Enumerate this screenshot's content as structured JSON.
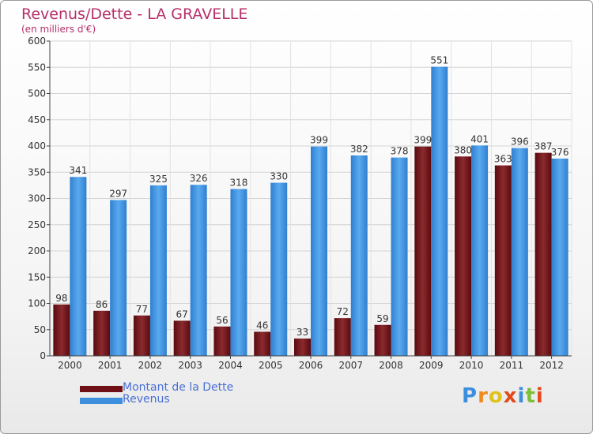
{
  "header": {
    "title": "Revenus/Dette - LA GRAVELLE",
    "subtitle": "(en milliers d'€)"
  },
  "chart_data": {
    "type": "bar",
    "title": "Revenus/Dette - LA GRAVELLE",
    "subtitle": "(en milliers d'€)",
    "categories": [
      "2000",
      "2001",
      "2002",
      "2003",
      "2004",
      "2005",
      "2006",
      "2007",
      "2008",
      "2009",
      "2010",
      "2011",
      "2012"
    ],
    "series": [
      {
        "name": "Montant de la Dette",
        "values": [
          98,
          86,
          77,
          67,
          56,
          46,
          33,
          72,
          59,
          399,
          380,
          363,
          387
        ],
        "color": "#7a1a1e"
      },
      {
        "name": "Revenus",
        "values": [
          341,
          297,
          325,
          326,
          318,
          330,
          399,
          382,
          378,
          551,
          401,
          396,
          376
        ],
        "color": "#3d8fde"
      }
    ],
    "ylim": [
      0,
      600
    ],
    "yticks": [
      0,
      50,
      100,
      150,
      200,
      250,
      300,
      350,
      400,
      450,
      500,
      550,
      600
    ],
    "grid": true,
    "legend": "bottom-left"
  },
  "legend": {
    "items": [
      {
        "label": "Montant de la Dette",
        "color": "#6e1016"
      },
      {
        "label": "Revenus",
        "color": "#3d8fde"
      }
    ]
  },
  "brand": {
    "text": "Proxiti"
  }
}
